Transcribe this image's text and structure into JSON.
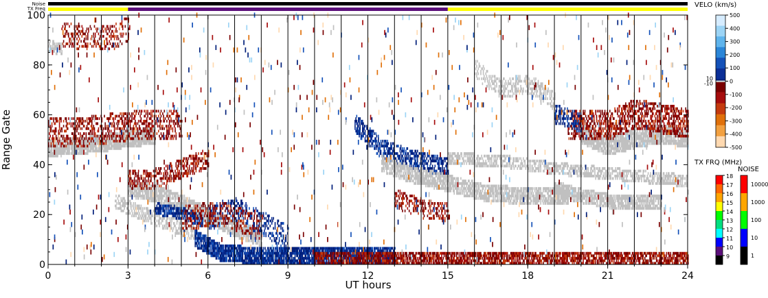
{
  "chart_data": {
    "type": "heatmap",
    "title": "",
    "xlabel": "UT hours",
    "ylabel": "Range Gate",
    "xlim": [
      0,
      24
    ],
    "ylim": [
      0,
      100
    ],
    "x_ticks": [
      "0",
      "3",
      "6",
      "9",
      "12",
      "15",
      "18",
      "21",
      "24"
    ],
    "y_ticks": [
      "0",
      "20",
      "40",
      "60",
      "80",
      "100"
    ],
    "beam_scan_boundaries_ut": [
      1,
      2,
      3,
      4,
      5,
      6,
      7,
      8,
      9,
      10,
      11,
      12,
      13,
      14,
      15,
      16,
      17,
      18,
      19,
      20,
      21,
      22,
      23
    ],
    "status_bars": {
      "noise_label": "Noise",
      "txfreq_label": "TX Freq",
      "noise_color": "#000000",
      "txfreq_segments": [
        {
          "start": 0,
          "end": 3,
          "color": "#ffff00"
        },
        {
          "start": 3,
          "end": 15,
          "color": "#5b0f7a"
        },
        {
          "start": 15,
          "end": 24,
          "color": "#ffff00"
        }
      ]
    },
    "ground_scatter_color": "#c0c0c0",
    "echo_bands": [
      {
        "type": "ground",
        "pts": [
          [
            0,
            46
          ],
          [
            1,
            47
          ],
          [
            2,
            48
          ],
          [
            3,
            50
          ],
          [
            4,
            51
          ]
        ],
        "width": 5,
        "density": 0.9
      },
      {
        "type": "neg",
        "pts": [
          [
            0,
            52
          ],
          [
            1.5,
            53
          ],
          [
            3,
            55
          ],
          [
            5,
            56
          ]
        ],
        "width": 10,
        "density": 0.35
      },
      {
        "type": "neg",
        "pts": [
          [
            0.5,
            92
          ],
          [
            1.5,
            90
          ],
          [
            2.5,
            91
          ],
          [
            3,
            94
          ]
        ],
        "width": 8,
        "density": 0.3
      },
      {
        "type": "ground",
        "pts": [
          [
            0,
            87
          ],
          [
            0.5,
            86
          ]
        ],
        "width": 3,
        "density": 0.6
      },
      {
        "type": "ground",
        "pts": [
          [
            3,
            30
          ],
          [
            4,
            28
          ],
          [
            5,
            24
          ],
          [
            6,
            19
          ],
          [
            7,
            14
          ],
          [
            8,
            10
          ]
        ],
        "width": 5,
        "density": 0.8
      },
      {
        "type": "neg",
        "pts": [
          [
            3,
            33
          ],
          [
            4,
            34
          ],
          [
            5,
            38
          ],
          [
            6,
            42
          ]
        ],
        "width": 6,
        "density": 0.45
      },
      {
        "type": "ground",
        "pts": [
          [
            2.5,
            25
          ],
          [
            3.5,
            20
          ],
          [
            4.5,
            16
          ],
          [
            5.5,
            12
          ]
        ],
        "width": 4,
        "density": 0.55
      },
      {
        "type": "pos",
        "pts": [
          [
            4,
            22
          ],
          [
            5,
            20
          ],
          [
            5.8,
            17
          ]
        ],
        "width": 3,
        "density": 0.7
      },
      {
        "type": "pos",
        "pts": [
          [
            5.5,
            10
          ],
          [
            6.5,
            4
          ],
          [
            8,
            3
          ],
          [
            10,
            3
          ],
          [
            12,
            3
          ],
          [
            13,
            3
          ]
        ],
        "width": 5,
        "density": 0.85
      },
      {
        "type": "pos",
        "pts": [
          [
            6,
            18
          ],
          [
            7,
            22
          ],
          [
            8,
            16
          ],
          [
            9,
            10
          ]
        ],
        "width": 8,
        "density": 0.35
      },
      {
        "type": "neg",
        "pts": [
          [
            5,
            18
          ],
          [
            6.5,
            20
          ],
          [
            8,
            14
          ]
        ],
        "width": 8,
        "density": 0.3
      },
      {
        "type": "neg",
        "pts": [
          [
            10,
            2
          ],
          [
            12,
            2
          ],
          [
            15,
            2
          ],
          [
            18,
            2
          ],
          [
            21,
            2
          ],
          [
            24,
            2
          ]
        ],
        "width": 4,
        "density": 0.7
      },
      {
        "type": "pos",
        "pts": [
          [
            11.5,
            56
          ],
          [
            12.5,
            46
          ],
          [
            13.5,
            42
          ],
          [
            15,
            38
          ]
        ],
        "width": 6,
        "density": 0.55
      },
      {
        "type": "ground",
        "pts": [
          [
            12.5,
            40
          ],
          [
            13.5,
            36
          ],
          [
            15,
            32
          ],
          [
            16.5,
            28
          ],
          [
            18,
            27
          ],
          [
            19.5,
            27
          ]
        ],
        "width": 5,
        "density": 0.75
      },
      {
        "type": "neg",
        "pts": [
          [
            13,
            26
          ],
          [
            14,
            22
          ],
          [
            15,
            20
          ]
        ],
        "width": 6,
        "density": 0.35
      },
      {
        "type": "ground",
        "pts": [
          [
            15,
            42
          ],
          [
            17,
            41
          ],
          [
            19,
            38
          ],
          [
            21,
            36
          ],
          [
            23,
            34
          ],
          [
            24,
            33
          ]
        ],
        "width": 3,
        "density": 0.6
      },
      {
        "type": "ground",
        "pts": [
          [
            19,
            30
          ],
          [
            20,
            27
          ],
          [
            21,
            25
          ],
          [
            22,
            24
          ],
          [
            23,
            25
          ]
        ],
        "width": 4,
        "density": 0.75
      },
      {
        "type": "ground",
        "pts": [
          [
            20,
            52
          ],
          [
            21,
            47
          ],
          [
            22,
            50
          ],
          [
            23,
            52
          ],
          [
            24,
            50
          ]
        ],
        "width": 6,
        "density": 0.85
      },
      {
        "type": "neg",
        "pts": [
          [
            19.5,
            56
          ],
          [
            21,
            55
          ],
          [
            22,
            60
          ],
          [
            23,
            58
          ],
          [
            24,
            56
          ]
        ],
        "width": 10,
        "density": 0.5
      },
      {
        "type": "ground",
        "pts": [
          [
            16,
            78
          ],
          [
            17,
            70
          ],
          [
            18,
            72
          ],
          [
            19,
            65
          ]
        ],
        "width": 6,
        "density": 0.4
      },
      {
        "type": "pos",
        "pts": [
          [
            19,
            60
          ],
          [
            20,
            56
          ]
        ],
        "width": 6,
        "density": 0.4
      }
    ],
    "velocity_scale": {
      "title": "VELO (km/s)",
      "ticks": [
        "500",
        "400",
        "300",
        "200",
        "100",
        "0",
        "-100",
        "-200",
        "-300",
        "-400",
        "-500"
      ],
      "extra_labels": [
        "10",
        "-10"
      ],
      "colors_top_to_bottom": [
        "#d6ecff",
        "#9cd4f5",
        "#5fb4ec",
        "#2b86d8",
        "#1451b8",
        "#0b2e96",
        "#001f7a",
        "#7a0000",
        "#a60d0d",
        "#c43a0e",
        "#e0700a",
        "#f2a040",
        "#ffd9b0"
      ],
      "ground_color": "#c0c0c0"
    },
    "txfreq_scale": {
      "title": "TX FRQ (MHz)",
      "ticks": [
        "18",
        "17",
        "16",
        "15",
        "14",
        "13",
        "12",
        "11",
        "10",
        "9"
      ],
      "colors_top_to_bottom": [
        "#ff0000",
        "#ff6600",
        "#ffa500",
        "#ffff00",
        "#00ff00",
        "#00e080",
        "#00ffff",
        "#0000ff",
        "#5b0f7a",
        "#000000"
      ]
    },
    "noise_scale": {
      "title": "NOISE",
      "ticks": [
        "10000",
        "1000",
        "100",
        "10",
        "1"
      ],
      "colors_top_to_bottom": [
        "#ff0000",
        "#ffa500",
        "#00ff00",
        "#0000ff",
        "#000000"
      ]
    }
  }
}
